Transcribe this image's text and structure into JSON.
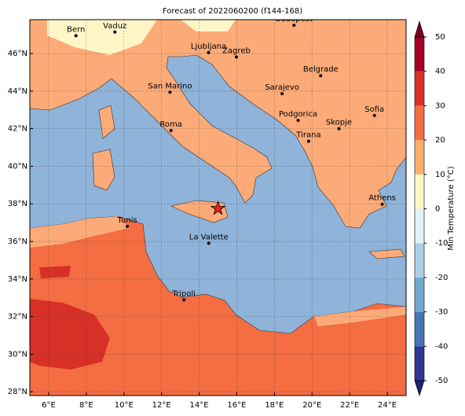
{
  "chart_data": {
    "type": "map",
    "title": "Forecast of 2022060200 (f144-168)",
    "xlim": [
      5,
      25
    ],
    "ylim": [
      27.8,
      47.8
    ],
    "xticks": [
      {
        "value": 6,
        "label": "6°E"
      },
      {
        "value": 8,
        "label": "8°E"
      },
      {
        "value": 10,
        "label": "10°E"
      },
      {
        "value": 12,
        "label": "12°E"
      },
      {
        "value": 14,
        "label": "14°E"
      },
      {
        "value": 16,
        "label": "16°E"
      },
      {
        "value": 18,
        "label": "18°E"
      },
      {
        "value": 20,
        "label": "20°E"
      },
      {
        "value": 22,
        "label": "22°E"
      },
      {
        "value": 24,
        "label": "24°E"
      }
    ],
    "yticks": [
      {
        "value": 28,
        "label": "28°N"
      },
      {
        "value": 30,
        "label": "30°N"
      },
      {
        "value": 32,
        "label": "32°N"
      },
      {
        "value": 34,
        "label": "34°N"
      },
      {
        "value": 36,
        "label": "36°N"
      },
      {
        "value": 38,
        "label": "38°N"
      },
      {
        "value": 40,
        "label": "40°N"
      },
      {
        "value": 42,
        "label": "42°N"
      },
      {
        "value": 44,
        "label": "44°N"
      },
      {
        "value": 46,
        "label": "46°N"
      }
    ],
    "grid": true,
    "cities": [
      {
        "name": "Bern",
        "lon": 7.45,
        "lat": 46.95
      },
      {
        "name": "Vaduz",
        "lon": 9.52,
        "lat": 47.14
      },
      {
        "name": "Budapest",
        "lon": 19.04,
        "lat": 47.5
      },
      {
        "name": "Ljubljana",
        "lon": 14.5,
        "lat": 46.05
      },
      {
        "name": "Zagreb",
        "lon": 15.98,
        "lat": 45.81
      },
      {
        "name": "Belgrade",
        "lon": 20.46,
        "lat": 44.82
      },
      {
        "name": "San Marino",
        "lon": 12.45,
        "lat": 43.94
      },
      {
        "name": "Sarajevo",
        "lon": 18.41,
        "lat": 43.86
      },
      {
        "name": "Sofia",
        "lon": 23.32,
        "lat": 42.7
      },
      {
        "name": "Roma",
        "lon": 12.5,
        "lat": 41.9
      },
      {
        "name": "Podgorica",
        "lon": 19.26,
        "lat": 42.44
      },
      {
        "name": "Skopje",
        "lon": 21.43,
        "lat": 42.0
      },
      {
        "name": "Tirana",
        "lon": 19.82,
        "lat": 41.33
      },
      {
        "name": "Athens",
        "lon": 23.73,
        "lat": 37.98
      },
      {
        "name": "Tunis",
        "lon": 10.18,
        "lat": 36.8
      },
      {
        "name": "La Valette",
        "lon": 14.51,
        "lat": 35.9
      },
      {
        "name": "Tripoli",
        "lon": 13.19,
        "lat": 32.89
      }
    ],
    "marker": {
      "lon": 15.0,
      "lat": 37.75,
      "color": "#e8231f"
    },
    "colorbar": {
      "label": "Min Temperature (°C)",
      "ticks": [
        -50,
        -40,
        -30,
        -20,
        -10,
        0,
        10,
        20,
        30,
        40,
        50
      ],
      "colors": [
        "#313695",
        "#4575b4",
        "#74a9cf",
        "#abd0e6",
        "#e0f3f8",
        "#fff6c8",
        "#fdae6b",
        "#f46d43",
        "#d73027",
        "#a50026"
      ],
      "under_color": "#1c2170",
      "over_color": "#7a0022"
    }
  }
}
